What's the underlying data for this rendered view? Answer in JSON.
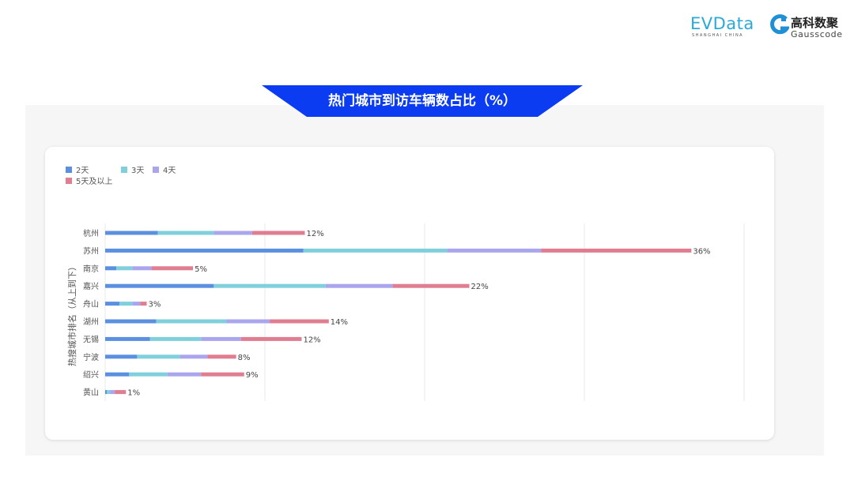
{
  "header": {
    "logo_evdata": "EVData",
    "logo_evdata_sub": "SHANGHAI CHINA",
    "logo_gauss_cn": "高科数聚",
    "logo_gauss_en": "Gausscode"
  },
  "title": "热门城市到访车辆数占比（%）",
  "colors": {
    "banner": "#0b3cf2",
    "panel": "#f7f6f7"
  },
  "chart_data": {
    "type": "bar",
    "orientation": "horizontal",
    "stacked": true,
    "title": "热门城市到访车辆数占比（%）",
    "ylabel": "热搜城市排名（从上到下）",
    "xlabel": "",
    "xlim": [
      0,
      40
    ],
    "grid": true,
    "legend_position": "top-left",
    "categories": [
      "杭州",
      "苏州",
      "南京",
      "嘉兴",
      "舟山",
      "湖州",
      "无锡",
      "宁波",
      "绍兴",
      "黄山"
    ],
    "series": [
      {
        "name": "2天",
        "color": "#5b8fe0",
        "values": [
          3.3,
          12.4,
          0.7,
          6.8,
          0.9,
          3.2,
          2.8,
          2.0,
          1.5,
          0.1
        ]
      },
      {
        "name": "3天",
        "color": "#7fcfdc",
        "values": [
          3.5,
          9.0,
          1.0,
          7.0,
          0.8,
          4.4,
          3.2,
          2.7,
          2.4,
          0.2
        ]
      },
      {
        "name": "4天",
        "color": "#aaa6ee",
        "values": [
          2.4,
          5.9,
          1.2,
          4.2,
          0.5,
          2.7,
          2.5,
          1.7,
          2.1,
          0.3
        ]
      },
      {
        "name": "5天及以上",
        "color": "#e07d90",
        "values": [
          3.3,
          9.4,
          2.6,
          4.8,
          0.4,
          3.7,
          3.8,
          1.8,
          2.7,
          0.7
        ]
      }
    ],
    "total_labels": [
      "12%",
      "36%",
      "5%",
      "22%",
      "3%",
      "14%",
      "12%",
      "8%",
      "9%",
      "1%"
    ]
  }
}
